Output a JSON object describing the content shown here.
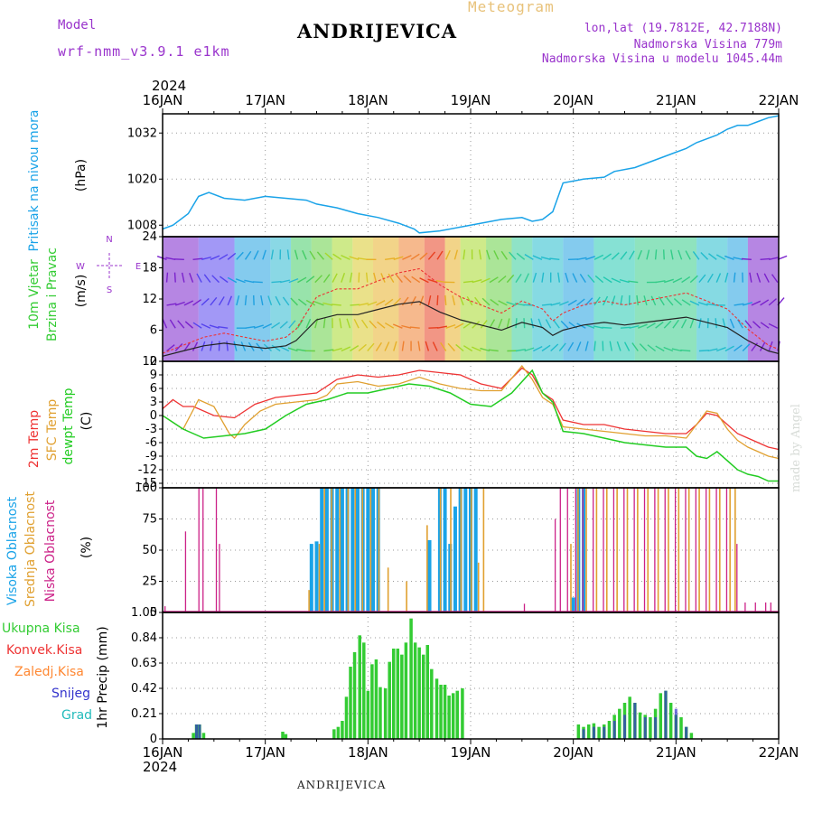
{
  "header": {
    "model_label": "Model",
    "model_name": "wrf-nmm_v3.9.1 e1km",
    "location": "ANDRIJEVICA",
    "meteogram": "Meteogram",
    "coords": "lon,lat (19.7812E, 42.7188N)",
    "altitude": "Nadmorska Visina 779m",
    "model_altitude": "Nadmorska Visina u modelu 1045.44m"
  },
  "footer": {
    "location": "ANDRIJEVICA",
    "credit": "made by Angel"
  },
  "time_axis": {
    "year": "2024",
    "labels": [
      "16JAN",
      "17JAN",
      "18JAN",
      "19JAN",
      "20JAN",
      "21JAN",
      "22JAN"
    ]
  },
  "colors": {
    "pressure": "#1aa3e8",
    "temp": "#ee3333",
    "sfc_temp": "#e0a030",
    "dewpoint": "#22cc22",
    "high_cloud": "#1aa3e8",
    "mid_cloud": "#e0a030",
    "low_cloud": "#cc2288",
    "rain": "#33cc33",
    "conv": "#ee3333",
    "frozen": "#ff8833",
    "snow": "#3333cc",
    "graupel": "#22bbbb"
  },
  "chart_data": [
    {
      "type": "line",
      "ylabel": [
        "Pritisak na nivou mora",
        "(hPa)"
      ],
      "yticks": [
        1008,
        1020,
        1032
      ],
      "ylim": [
        1005,
        1037
      ],
      "grid": true,
      "series": [
        {
          "x": [
            0,
            0.1,
            0.25,
            0.35,
            0.45,
            0.6,
            0.8,
            1.0,
            1.2,
            1.4,
            1.5,
            1.7,
            1.9,
            2.1,
            2.3,
            2.45,
            2.5,
            2.7,
            2.9,
            3.1,
            3.3,
            3.5,
            3.6,
            3.7,
            3.75,
            3.8,
            3.9,
            4.1,
            4.3,
            4.4,
            4.6,
            4.8,
            5.0,
            5.1,
            5.2,
            5.4,
            5.5,
            5.6,
            5.7,
            5.8,
            5.9,
            6.0
          ],
          "values": [
            1007,
            1008,
            1011,
            1015.5,
            1016.5,
            1015,
            1014.5,
            1015.5,
            1015,
            1014.5,
            1013.5,
            1012.5,
            1011,
            1010,
            1008.5,
            1007,
            1006,
            1006.5,
            1007.5,
            1008.5,
            1009.5,
            1010,
            1009,
            1009.5,
            1010.5,
            1011.5,
            1019,
            1020,
            1020.5,
            1022,
            1023,
            1025,
            1027,
            1028,
            1029.5,
            1031.5,
            1033,
            1034,
            1034,
            1035,
            1036,
            1036.5
          ]
        }
      ]
    },
    {
      "type": "line",
      "ylabel": [
        "10m Vjetar",
        "Brzina i Pravac",
        "(m/s)"
      ],
      "yticks": [
        0,
        6,
        12,
        18,
        24
      ],
      "ylim": [
        0,
        24
      ],
      "compass": [
        "N",
        "W",
        "E",
        "S"
      ],
      "series": [
        {
          "name": "wind speed",
          "x": [
            0,
            0.2,
            0.4,
            0.6,
            0.8,
            1.0,
            1.2,
            1.3,
            1.5,
            1.7,
            1.9,
            2.1,
            2.3,
            2.5,
            2.7,
            2.9,
            3.1,
            3.3,
            3.5,
            3.7,
            3.8,
            3.9,
            4.1,
            4.3,
            4.5,
            4.7,
            4.9,
            5.1,
            5.3,
            5.5,
            5.7,
            5.9,
            6.0
          ],
          "values": [
            1,
            2,
            3,
            3.5,
            3,
            2.5,
            3,
            4,
            8,
            9,
            9,
            10,
            11,
            11.5,
            9.5,
            8,
            7,
            6,
            7.5,
            6.5,
            5,
            6,
            7,
            7.5,
            7,
            7.5,
            8,
            8.5,
            7.5,
            6.5,
            4,
            2,
            1.5
          ]
        }
      ]
    },
    {
      "type": "line",
      "ylabel": [
        "2m Temp",
        "SFC Temp",
        "dewpt Temp",
        "(C)"
      ],
      "yticks": [
        -15,
        -12,
        -9,
        -6,
        -3,
        0,
        3,
        6,
        9,
        12
      ],
      "ylim": [
        -16,
        12
      ],
      "grid": true,
      "series": [
        {
          "name": "2m Temp",
          "x": [
            0,
            0.1,
            0.2,
            0.3,
            0.5,
            0.7,
            0.9,
            1.1,
            1.3,
            1.5,
            1.7,
            1.9,
            2.1,
            2.3,
            2.5,
            2.7,
            2.9,
            3.1,
            3.3,
            3.5,
            3.6,
            3.7,
            3.8,
            3.9,
            4.1,
            4.3,
            4.5,
            4.7,
            4.9,
            5.1,
            5.2,
            5.3,
            5.4,
            5.5,
            5.6,
            5.7,
            5.8,
            5.9,
            6.0
          ],
          "values": [
            1.5,
            3.5,
            2,
            2,
            0,
            -0.5,
            2.5,
            4,
            4.5,
            5,
            8,
            9,
            8.5,
            9,
            10,
            9.5,
            9,
            7,
            6,
            10.5,
            9,
            5,
            3.5,
            -1,
            -2,
            -2,
            -3,
            -3.5,
            -4,
            -4,
            -2,
            0.5,
            0,
            -2,
            -4,
            -5,
            -6,
            -7,
            -7.5
          ]
        },
        {
          "name": "SFC Temp",
          "x": [
            0,
            0.2,
            0.35,
            0.5,
            0.65,
            0.7,
            0.8,
            0.95,
            1.1,
            1.3,
            1.5,
            1.6,
            1.7,
            1.9,
            2.1,
            2.3,
            2.5,
            2.7,
            2.9,
            3.1,
            3.3,
            3.5,
            3.6,
            3.7,
            3.8,
            3.9,
            4.1,
            4.3,
            4.5,
            4.7,
            4.9,
            5.1,
            5.2,
            5.3,
            5.4,
            5.5,
            5.6,
            5.7,
            5.8,
            5.9,
            6.0
          ],
          "values": [
            0,
            -3,
            3.5,
            2,
            -4,
            -5,
            -2,
            1,
            2.5,
            3,
            3.5,
            4.5,
            7,
            7.5,
            6.5,
            7,
            8.5,
            7,
            6,
            5.5,
            5.5,
            11,
            8,
            4,
            2.5,
            -2.5,
            -3,
            -3.5,
            -4,
            -4.5,
            -4.5,
            -5,
            -2,
            1,
            0.5,
            -3,
            -5.5,
            -7,
            -8,
            -9,
            -9.5
          ]
        },
        {
          "name": "dewpt Temp",
          "x": [
            0,
            0.2,
            0.4,
            0.6,
            0.8,
            1.0,
            1.2,
            1.4,
            1.6,
            1.8,
            2.0,
            2.2,
            2.4,
            2.6,
            2.8,
            3.0,
            3.2,
            3.4,
            3.6,
            3.7,
            3.8,
            3.9,
            4.1,
            4.3,
            4.5,
            4.7,
            4.9,
            5.1,
            5.2,
            5.3,
            5.4,
            5.5,
            5.6,
            5.7,
            5.8,
            5.9,
            6.0
          ],
          "values": [
            0,
            -3,
            -5,
            -4.5,
            -4,
            -3,
            0,
            2.5,
            3.5,
            5,
            5,
            6,
            7,
            6.5,
            5,
            2.5,
            2,
            5,
            10,
            5,
            3,
            -3.5,
            -4,
            -5,
            -6,
            -6.5,
            -7,
            -7,
            -9,
            -9.5,
            -8,
            -10,
            -12,
            -13,
            -13.5,
            -14.5,
            -14.5
          ]
        }
      ]
    },
    {
      "type": "bar",
      "ylabel": [
        "Visoka Oblacnost",
        "Srednja Oblacnost",
        "Niska Oblacnost",
        "(%)"
      ],
      "yticks": [
        0,
        25,
        50,
        75,
        100
      ],
      "ylim": [
        0,
        100
      ],
      "grid": true,
      "series": [
        {
          "name": "Visoka Oblacnost",
          "x": [
            1.45,
            1.5,
            1.55,
            1.6,
            1.65,
            1.7,
            1.75,
            1.8,
            1.85,
            1.9,
            1.95,
            2.0,
            2.05,
            2.1,
            2.6,
            2.7,
            2.75,
            2.8,
            2.85,
            2.9,
            2.95,
            3.0,
            3.05,
            4.0,
            4.05,
            4.1
          ],
          "values": [
            55,
            57,
            100,
            100,
            100,
            100,
            100,
            100,
            100,
            100,
            100,
            100,
            100,
            100,
            58,
            100,
            100,
            55,
            85,
            100,
            100,
            100,
            100,
            12,
            100,
            100
          ]
        },
        {
          "name": "Srednja Oblacnost",
          "x": [
            1.4,
            1.5,
            1.55,
            1.62,
            1.7,
            1.78,
            1.85,
            1.92,
            2.0,
            2.08,
            2.17,
            2.35,
            2.55,
            2.68,
            2.78,
            2.88,
            2.98,
            3.05,
            3.1,
            3.95,
            4.02,
            4.1,
            4.2,
            4.3,
            4.4,
            4.5,
            4.6,
            4.7,
            4.8,
            4.9,
            5.0,
            5.1,
            5.2,
            5.3,
            5.4,
            5.5,
            5.55
          ],
          "values": [
            18,
            55,
            100,
            100,
            100,
            100,
            100,
            100,
            100,
            100,
            36,
            25,
            70,
            100,
            100,
            100,
            100,
            40,
            100,
            55,
            100,
            100,
            100,
            100,
            100,
            100,
            100,
            100,
            100,
            100,
            100,
            100,
            100,
            100,
            100,
            100,
            100
          ]
        },
        {
          "name": "Niska Oblacnost",
          "x": [
            0.05,
            0.25,
            0.38,
            0.42,
            0.55,
            0.58,
            3.55,
            3.85,
            3.9,
            3.97,
            4.05,
            4.12,
            4.22,
            4.32,
            4.42,
            4.52,
            4.62,
            4.72,
            4.82,
            4.92,
            5.02,
            5.12,
            5.22,
            5.32,
            5.42,
            5.52,
            5.62,
            5.7,
            5.8,
            5.9,
            5.95
          ],
          "values": [
            5,
            65,
            100,
            100,
            100,
            55,
            7,
            75,
            100,
            100,
            100,
            100,
            100,
            100,
            100,
            100,
            100,
            100,
            100,
            100,
            100,
            100,
            100,
            100,
            100,
            100,
            55,
            8,
            8,
            8,
            8
          ]
        }
      ]
    },
    {
      "type": "bar",
      "ylabel": [
        "1hr Precip (mm)"
      ],
      "legend": [
        "Ukupna Kisa",
        "Konvek.Kisa",
        "Zaledj.Kisa",
        "Snijeg",
        "Grad"
      ],
      "yticks": [
        0,
        0.21,
        0.42,
        0.63,
        0.84,
        1.05
      ],
      "ylim": [
        0,
        1.05
      ],
      "grid": true,
      "series": [
        {
          "name": "Ukupna Kisa",
          "x": [
            0.3,
            0.33,
            0.36,
            0.4,
            1.17,
            1.2,
            1.67,
            1.71,
            1.75,
            1.79,
            1.83,
            1.87,
            1.92,
            1.96,
            2.0,
            2.04,
            2.08,
            2.12,
            2.17,
            2.21,
            2.25,
            2.29,
            2.33,
            2.37,
            2.42,
            2.46,
            2.5,
            2.54,
            2.58,
            2.62,
            2.67,
            2.71,
            2.75,
            2.79,
            2.83,
            2.87,
            2.92,
            3.25,
            4.05,
            4.1,
            4.15,
            4.2,
            4.25,
            4.3,
            4.35,
            4.4,
            4.45,
            4.5,
            4.55,
            4.6,
            4.65,
            4.7,
            4.75,
            4.8,
            4.85,
            4.9,
            4.95,
            5.0,
            5.05,
            5.1,
            5.15
          ],
          "values": [
            0.05,
            0.12,
            0.12,
            0.05,
            0.06,
            0.04,
            0.08,
            0.1,
            0.15,
            0.35,
            0.6,
            0.72,
            0.86,
            0.8,
            0.4,
            0.62,
            0.66,
            0.43,
            0.42,
            0.64,
            0.75,
            0.75,
            0.7,
            0.8,
            1.0,
            0.8,
            0.76,
            0.7,
            0.78,
            0.58,
            0.5,
            0.45,
            0.45,
            0.36,
            0.38,
            0.4,
            0.42,
            0.0,
            0.12,
            0.1,
            0.12,
            0.13,
            0.1,
            0.12,
            0.15,
            0.2,
            0.25,
            0.3,
            0.35,
            0.3,
            0.22,
            0.2,
            0.18,
            0.25,
            0.38,
            0.4,
            0.3,
            0.2,
            0.18,
            0.1,
            0.05
          ]
        },
        {
          "name": "Snijeg",
          "x": [
            0.33,
            0.36,
            4.1,
            4.2,
            4.3,
            4.4,
            4.5,
            4.6,
            4.7,
            4.8,
            4.9,
            5.0,
            5.1
          ],
          "values": [
            0.12,
            0.12,
            0.08,
            0.1,
            0.1,
            0.15,
            0.2,
            0.3,
            0.18,
            0.18,
            0.4,
            0.25,
            0.1
          ]
        },
        {
          "name": "Grad",
          "x": [],
          "values": []
        },
        {
          "name": "Konvek.Kisa",
          "x": [],
          "values": []
        },
        {
          "name": "Zaledj.Kisa",
          "x": [],
          "values": []
        }
      ]
    }
  ]
}
